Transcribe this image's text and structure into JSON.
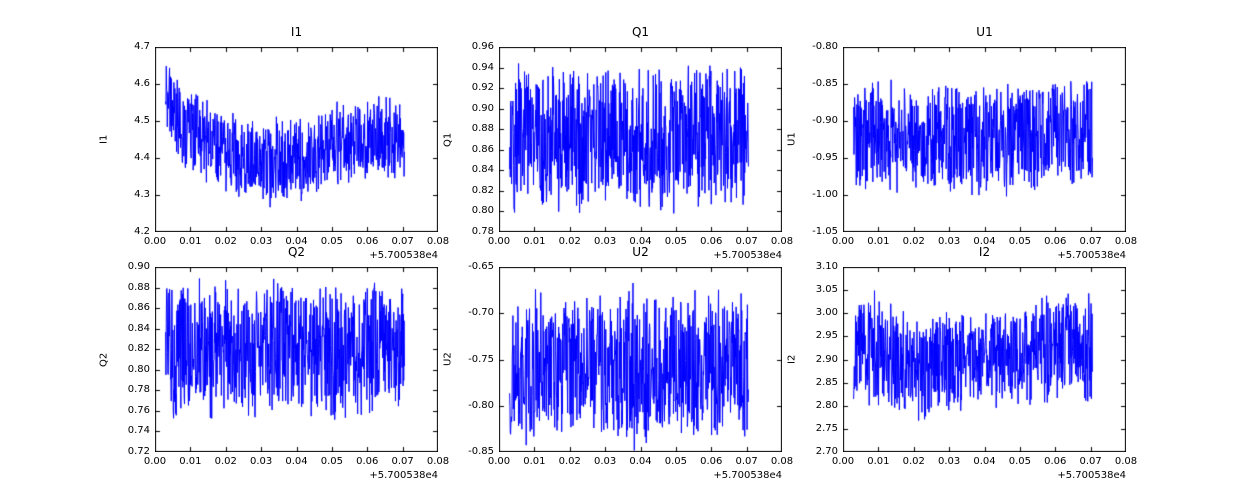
{
  "figure": {
    "background": "#ffffff",
    "line_color": "#0000ff",
    "frame_color": "#000000"
  },
  "chart_data": [
    {
      "type": "line",
      "title": "I1",
      "ylabel": "I1",
      "xlabel": "",
      "x_offset_label": "+5.700538e4",
      "series_color": "#0000ff",
      "xlim": [
        0.0,
        0.08
      ],
      "ylim": [
        4.2,
        4.7
      ],
      "xticks": [
        "0.00",
        "0.01",
        "0.02",
        "0.03",
        "0.04",
        "0.05",
        "0.06",
        "0.07",
        "0.08"
      ],
      "yticks": [
        "4.2",
        "4.3",
        "4.4",
        "4.5",
        "4.6",
        "4.7"
      ],
      "legend": "none",
      "grid": false,
      "noise_envelope": {
        "x": [
          0.003,
          0.006,
          0.01,
          0.015,
          0.02,
          0.025,
          0.03,
          0.035,
          0.04,
          0.045,
          0.05,
          0.055,
          0.06,
          0.065,
          0.0705
        ],
        "top": [
          4.67,
          4.63,
          4.6,
          4.58,
          4.54,
          4.51,
          4.5,
          4.51,
          4.52,
          4.53,
          4.55,
          4.55,
          4.57,
          4.58,
          4.55
        ],
        "bottom": [
          4.44,
          4.38,
          4.34,
          4.32,
          4.3,
          4.28,
          4.26,
          4.27,
          4.28,
          4.3,
          4.3,
          4.32,
          4.33,
          4.34,
          4.35
        ]
      }
    },
    {
      "type": "line",
      "title": "Q1",
      "ylabel": "Q1",
      "xlabel": "",
      "x_offset_label": "+5.700538e4",
      "series_color": "#0000ff",
      "xlim": [
        0.0,
        0.08
      ],
      "ylim": [
        0.78,
        0.96
      ],
      "xticks": [
        "0.00",
        "0.01",
        "0.02",
        "0.03",
        "0.04",
        "0.05",
        "0.06",
        "0.07",
        "0.08"
      ],
      "yticks": [
        "0.78",
        "0.80",
        "0.82",
        "0.84",
        "0.86",
        "0.88",
        "0.90",
        "0.92",
        "0.94",
        "0.96"
      ],
      "legend": "none",
      "grid": false,
      "noise_envelope": {
        "x": [
          0.003,
          0.01,
          0.02,
          0.03,
          0.04,
          0.05,
          0.06,
          0.0705
        ],
        "top": [
          0.95,
          0.945,
          0.94,
          0.945,
          0.94,
          0.94,
          0.945,
          0.94
        ],
        "bottom": [
          0.8,
          0.8,
          0.795,
          0.8,
          0.8,
          0.795,
          0.8,
          0.8
        ]
      }
    },
    {
      "type": "line",
      "title": "U1",
      "ylabel": "U1",
      "xlabel": "",
      "x_offset_label": "+5.700538e4",
      "series_color": "#0000ff",
      "xlim": [
        0.0,
        0.08
      ],
      "ylim": [
        -1.05,
        -0.8
      ],
      "xticks": [
        "0.00",
        "0.01",
        "0.02",
        "0.03",
        "0.04",
        "0.05",
        "0.06",
        "0.07",
        "0.08"
      ],
      "yticks": [
        "-1.05",
        "-1.00",
        "-0.95",
        "-0.90",
        "-0.85",
        "-0.80"
      ],
      "legend": "none",
      "grid": false,
      "noise_envelope": {
        "x": [
          0.003,
          0.01,
          0.02,
          0.03,
          0.04,
          0.05,
          0.06,
          0.0705
        ],
        "top": [
          -0.85,
          -0.845,
          -0.85,
          -0.845,
          -0.85,
          -0.85,
          -0.845,
          -0.84
        ],
        "bottom": [
          -1.0,
          -1.005,
          -1.0,
          -1.0,
          -1.005,
          -1.0,
          -1.0,
          -0.995
        ]
      }
    },
    {
      "type": "line",
      "title": "Q2",
      "ylabel": "Q2",
      "xlabel": "",
      "x_offset_label": "+5.700538e4",
      "series_color": "#0000ff",
      "xlim": [
        0.0,
        0.08
      ],
      "ylim": [
        0.72,
        0.9
      ],
      "xticks": [
        "0.00",
        "0.01",
        "0.02",
        "0.03",
        "0.04",
        "0.05",
        "0.06",
        "0.07",
        "0.08"
      ],
      "yticks": [
        "0.72",
        "0.74",
        "0.76",
        "0.78",
        "0.80",
        "0.82",
        "0.84",
        "0.86",
        "0.88",
        "0.90"
      ],
      "legend": "none",
      "grid": false,
      "noise_envelope": {
        "x": [
          0.003,
          0.01,
          0.02,
          0.03,
          0.04,
          0.05,
          0.06,
          0.0705
        ],
        "top": [
          0.885,
          0.89,
          0.885,
          0.89,
          0.885,
          0.885,
          0.89,
          0.885
        ],
        "bottom": [
          0.755,
          0.75,
          0.755,
          0.75,
          0.755,
          0.75,
          0.755,
          0.76
        ]
      }
    },
    {
      "type": "line",
      "title": "U2",
      "ylabel": "U2",
      "xlabel": "",
      "x_offset_label": "+5.700538e4",
      "series_color": "#0000ff",
      "xlim": [
        0.0,
        0.08
      ],
      "ylim": [
        -0.85,
        -0.65
      ],
      "xticks": [
        "0.00",
        "0.01",
        "0.02",
        "0.03",
        "0.04",
        "0.05",
        "0.06",
        "0.07",
        "0.08"
      ],
      "yticks": [
        "-0.85",
        "-0.80",
        "-0.75",
        "-0.70",
        "-0.65"
      ],
      "legend": "none",
      "grid": false,
      "noise_envelope": {
        "x": [
          0.003,
          0.01,
          0.02,
          0.03,
          0.04,
          0.05,
          0.06,
          0.0705
        ],
        "top": [
          -0.68,
          -0.675,
          -0.67,
          -0.675,
          -0.67,
          -0.675,
          -0.67,
          -0.675
        ],
        "bottom": [
          -0.84,
          -0.845,
          -0.84,
          -0.84,
          -0.845,
          -0.84,
          -0.84,
          -0.835
        ]
      }
    },
    {
      "type": "line",
      "title": "I2",
      "ylabel": "I2",
      "xlabel": "",
      "x_offset_label": "+5.700538e4",
      "series_color": "#0000ff",
      "xlim": [
        0.0,
        0.08
      ],
      "ylim": [
        2.7,
        3.1
      ],
      "xticks": [
        "0.00",
        "0.01",
        "0.02",
        "0.03",
        "0.04",
        "0.05",
        "0.06",
        "0.07",
        "0.08"
      ],
      "yticks": [
        "2.70",
        "2.75",
        "2.80",
        "2.85",
        "2.90",
        "2.95",
        "3.00",
        "3.05",
        "3.10"
      ],
      "legend": "none",
      "grid": false,
      "noise_envelope": {
        "x": [
          0.003,
          0.008,
          0.015,
          0.02,
          0.025,
          0.03,
          0.035,
          0.04,
          0.045,
          0.05,
          0.055,
          0.06,
          0.065,
          0.0705
        ],
        "top": [
          3.03,
          3.05,
          3.03,
          3.0,
          3.01,
          3.02,
          3.0,
          3.01,
          3.02,
          3.02,
          3.03,
          3.05,
          3.06,
          3.04
        ],
        "bottom": [
          2.8,
          2.8,
          2.78,
          2.76,
          2.77,
          2.79,
          2.79,
          2.8,
          2.8,
          2.8,
          2.8,
          2.81,
          2.82,
          2.8
        ]
      }
    }
  ]
}
